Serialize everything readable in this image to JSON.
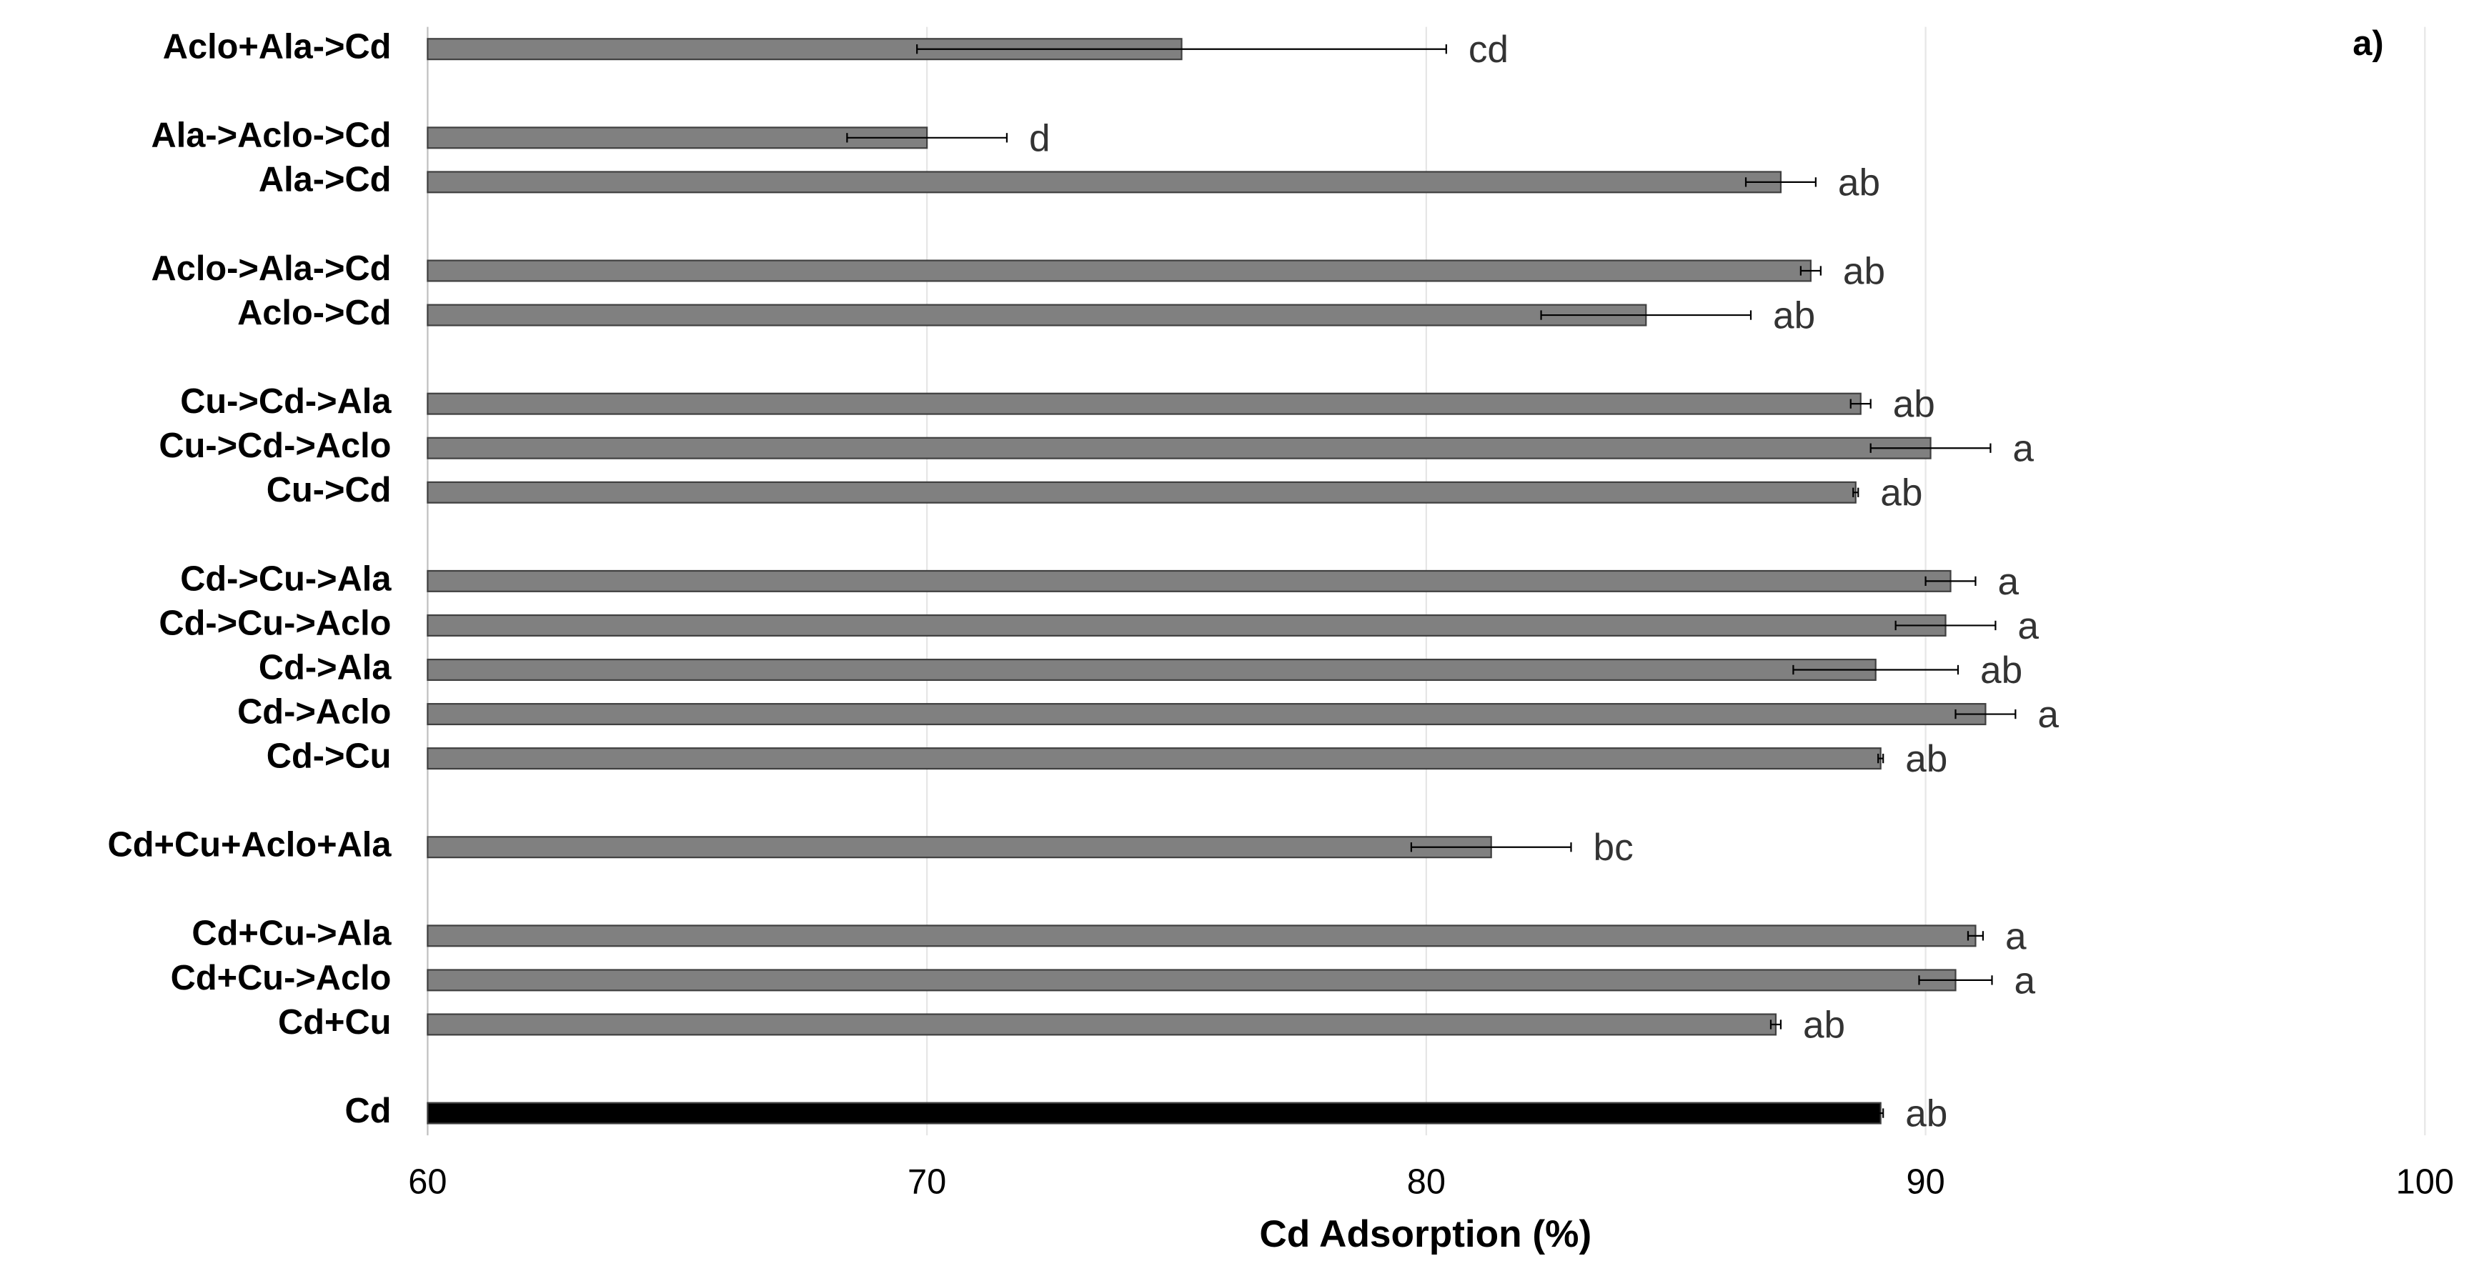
{
  "chart_data": {
    "type": "hbar",
    "xlabel": "Cd Adsorption (%)",
    "panel_label": "a)",
    "categories": [
      "Aclo+Ala->Cd",
      null,
      "Ala->Aclo->Cd",
      "Ala->Cd",
      null,
      "Aclo->Ala->Cd",
      "Aclo->Cd",
      null,
      "Cu->Cd->Ala",
      "Cu->Cd->Aclo",
      "Cu->Cd",
      null,
      "Cd->Cu->Ala",
      "Cd->Cu->Aclo",
      "Cd->Ala",
      "Cd->Aclo",
      "Cd->Cu",
      null,
      "Cd+Cu+Aclo+Ala",
      null,
      "Cd+Cu->Ala",
      "Cd+Cu->Aclo",
      "Cd+Cu",
      null,
      "Cd"
    ],
    "values": [
      75.1,
      null,
      70.0,
      87.1,
      null,
      87.7,
      84.4,
      null,
      88.7,
      90.1,
      88.6,
      null,
      90.5,
      90.4,
      89.0,
      91.2,
      89.1,
      null,
      81.3,
      null,
      91.0,
      90.6,
      87.0,
      null,
      89.1
    ],
    "errors": [
      5.3,
      null,
      1.6,
      0.7,
      null,
      0.2,
      2.1,
      null,
      0.2,
      1.2,
      0.05,
      null,
      0.5,
      1.0,
      1.65,
      0.6,
      0.05,
      null,
      1.6,
      null,
      0.15,
      0.73,
      0.1,
      null,
      0.05
    ],
    "letters": [
      "cd",
      null,
      "d",
      "ab",
      null,
      "ab",
      "ab",
      null,
      "ab",
      "a",
      "ab",
      null,
      "a",
      "a",
      "ab",
      "a",
      "ab",
      null,
      "bc",
      null,
      "a",
      "a",
      "ab",
      null,
      "ab"
    ],
    "colors": [
      "#808080",
      null,
      "#808080",
      "#808080",
      null,
      "#808080",
      "#808080",
      null,
      "#808080",
      "#808080",
      "#808080",
      null,
      "#808080",
      "#808080",
      "#808080",
      "#808080",
      "#808080",
      null,
      "#808080",
      null,
      "#808080",
      "#808080",
      "#808080",
      null,
      "#000000"
    ],
    "xlim": [
      60,
      100
    ],
    "xticks": [
      60,
      70,
      80,
      90,
      100
    ],
    "grid": true
  }
}
